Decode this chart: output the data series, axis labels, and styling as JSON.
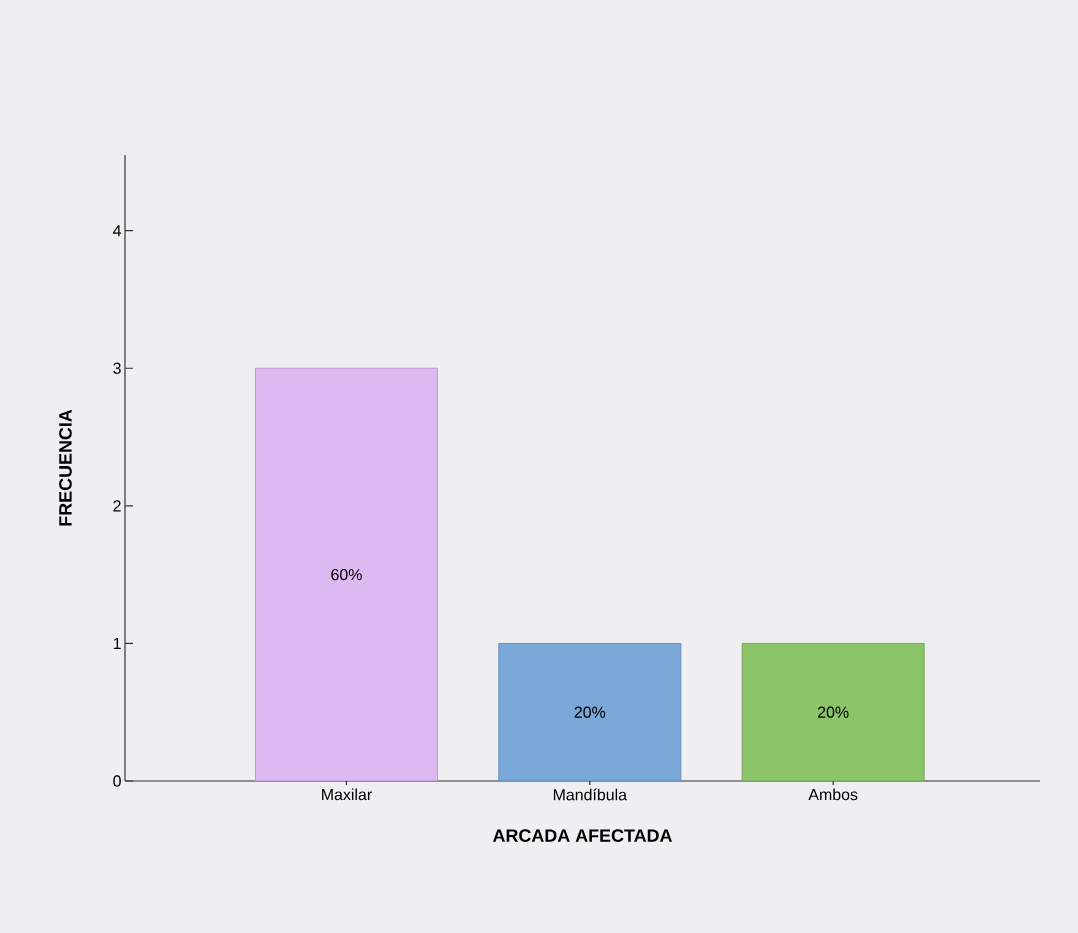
{
  "chart_data": {
    "type": "bar",
    "xlabel": "ARCADA AFECTADA",
    "ylabel": "FRECUENCIA",
    "categories": [
      "Maxilar",
      "Mandíbula",
      "Ambos"
    ],
    "values": [
      3,
      1,
      1
    ],
    "colors": [
      "#ddb9f1",
      "#7aa8d9",
      "#8cc46a"
    ],
    "annotations": [
      "60%",
      "20%",
      "20%"
    ],
    "ylim": [
      0,
      4.55
    ],
    "yticks": [
      0,
      1,
      2,
      3,
      4
    ],
    "grid": false
  }
}
